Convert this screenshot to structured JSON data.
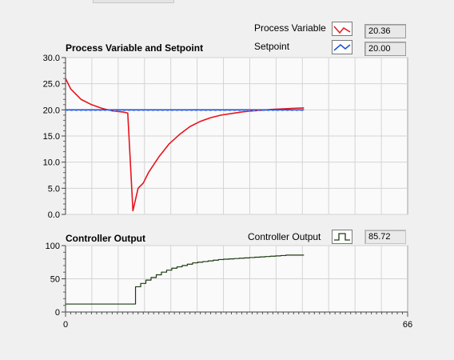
{
  "legend": {
    "process_variable_label": "Process Variable",
    "setpoint_label": "Setpoint",
    "process_variable_value": "20.36",
    "setpoint_value": "20.00",
    "controller_output_label": "Controller Output",
    "controller_output_value": "85.72",
    "process_variable_color": "#e8141c",
    "setpoint_color": "#1f4fd6",
    "controller_output_color": "#1c3a10",
    "process_variable_icon": "line-icon",
    "setpoint_icon": "line-icon",
    "controller_output_icon": "step-line-icon"
  },
  "chart_data": [
    {
      "type": "line",
      "title": "Process Variable and Setpoint",
      "ylim": [
        0,
        30
      ],
      "xlim": [
        0,
        66
      ],
      "yticks": [
        "0.0",
        "5.0",
        "10.0",
        "15.0",
        "20.0",
        "25.0",
        "30.0"
      ],
      "grid": true,
      "series": [
        {
          "name": "Process Variable",
          "color": "#e8141c",
          "x": [
            0,
            1,
            3,
            5,
            7,
            9,
            11,
            12,
            13,
            14,
            15,
            16,
            17,
            18,
            20,
            22,
            24,
            26,
            28,
            30,
            32,
            34,
            36,
            38,
            40,
            42,
            44,
            46
          ],
          "y": [
            26,
            24,
            22,
            21,
            20.3,
            19.8,
            19.6,
            19.4,
            0.7,
            5,
            6,
            8,
            9.5,
            11,
            13.5,
            15.3,
            16.8,
            17.8,
            18.5,
            19,
            19.3,
            19.6,
            19.8,
            19.95,
            20.1,
            20.2,
            20.3,
            20.36
          ]
        },
        {
          "name": "Setpoint",
          "color": "#1f4fd6",
          "x": [
            0,
            46
          ],
          "y": [
            20,
            20
          ]
        }
      ]
    },
    {
      "type": "line",
      "title": "Controller Output",
      "ylim": [
        0,
        100
      ],
      "xlim": [
        0,
        66
      ],
      "yticks": [
        "0",
        "50",
        "100"
      ],
      "xticks": [
        "0",
        "66"
      ],
      "grid": true,
      "series": [
        {
          "name": "Controller Output",
          "color": "#1c3a10",
          "step": true,
          "x": [
            0,
            13,
            13.5,
            14.5,
            15.5,
            16.5,
            17.5,
            18.5,
            19.5,
            20.5,
            21.5,
            22.5,
            23.5,
            24.5,
            25.5,
            26.5,
            27.5,
            28.5,
            29.5,
            30.5,
            31.5,
            32.5,
            33.5,
            34.5,
            35.5,
            36.5,
            37.5,
            38.5,
            39.5,
            40.5,
            41.5,
            42.5,
            46
          ],
          "y": [
            12,
            12,
            38,
            43,
            48,
            52,
            56,
            60,
            63,
            66,
            68,
            70,
            72,
            74,
            75,
            76,
            77,
            78,
            79,
            79.5,
            80,
            80.5,
            81,
            81.5,
            82,
            82.5,
            83,
            83.5,
            84,
            84.5,
            85,
            85.72,
            85.72
          ]
        }
      ]
    }
  ]
}
